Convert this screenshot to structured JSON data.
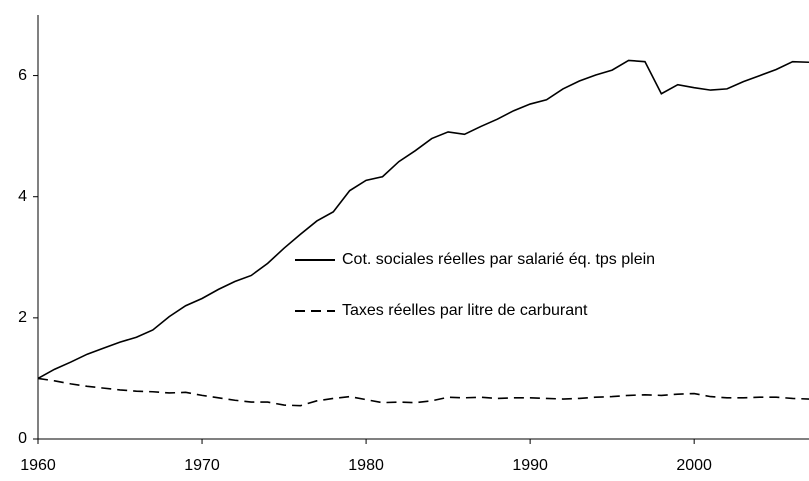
{
  "chart_data": {
    "type": "line",
    "x": [
      1960,
      1961,
      1962,
      1963,
      1964,
      1965,
      1966,
      1967,
      1968,
      1969,
      1970,
      1971,
      1972,
      1973,
      1974,
      1975,
      1976,
      1977,
      1978,
      1979,
      1980,
      1981,
      1982,
      1983,
      1984,
      1985,
      1986,
      1987,
      1988,
      1989,
      1990,
      1991,
      1992,
      1993,
      1994,
      1995,
      1996,
      1997,
      1998,
      1999,
      2000,
      2001,
      2002,
      2003,
      2004,
      2005,
      2006,
      2007
    ],
    "series": [
      {
        "name": "Cot. sociales réelles par salarié éq. tps plein",
        "color": "#000000",
        "dash": "solid",
        "values": [
          1.0,
          1.15,
          1.27,
          1.4,
          1.5,
          1.6,
          1.68,
          1.8,
          2.02,
          2.2,
          2.32,
          2.47,
          2.6,
          2.7,
          2.9,
          3.15,
          3.38,
          3.6,
          3.75,
          4.1,
          4.27,
          4.33,
          4.58,
          4.76,
          4.96,
          5.07,
          5.03,
          5.16,
          5.28,
          5.42,
          5.53,
          5.6,
          5.78,
          5.91,
          6.01,
          6.09,
          6.25,
          6.23,
          5.7,
          5.85,
          5.8,
          5.76,
          5.78,
          5.9,
          6.0,
          6.1,
          6.23,
          6.22
        ]
      },
      {
        "name": "Taxes réelles par litre de carburant",
        "color": "#000000",
        "dash": "dashed",
        "values": [
          1.0,
          0.96,
          0.91,
          0.87,
          0.84,
          0.81,
          0.79,
          0.78,
          0.76,
          0.77,
          0.72,
          0.68,
          0.64,
          0.61,
          0.61,
          0.56,
          0.55,
          0.63,
          0.67,
          0.7,
          0.65,
          0.6,
          0.61,
          0.6,
          0.63,
          0.69,
          0.68,
          0.69,
          0.67,
          0.68,
          0.68,
          0.67,
          0.66,
          0.67,
          0.69,
          0.7,
          0.72,
          0.73,
          0.72,
          0.74,
          0.75,
          0.7,
          0.68,
          0.68,
          0.69,
          0.69,
          0.67,
          0.66
        ]
      }
    ],
    "xlim": [
      1960,
      2007
    ],
    "xticks": [
      1960,
      1970,
      1980,
      1990,
      2000
    ],
    "ylim": [
      0,
      7
    ],
    "yticks": [
      0,
      2,
      4,
      6
    ],
    "grid": false,
    "legend": "center"
  }
}
